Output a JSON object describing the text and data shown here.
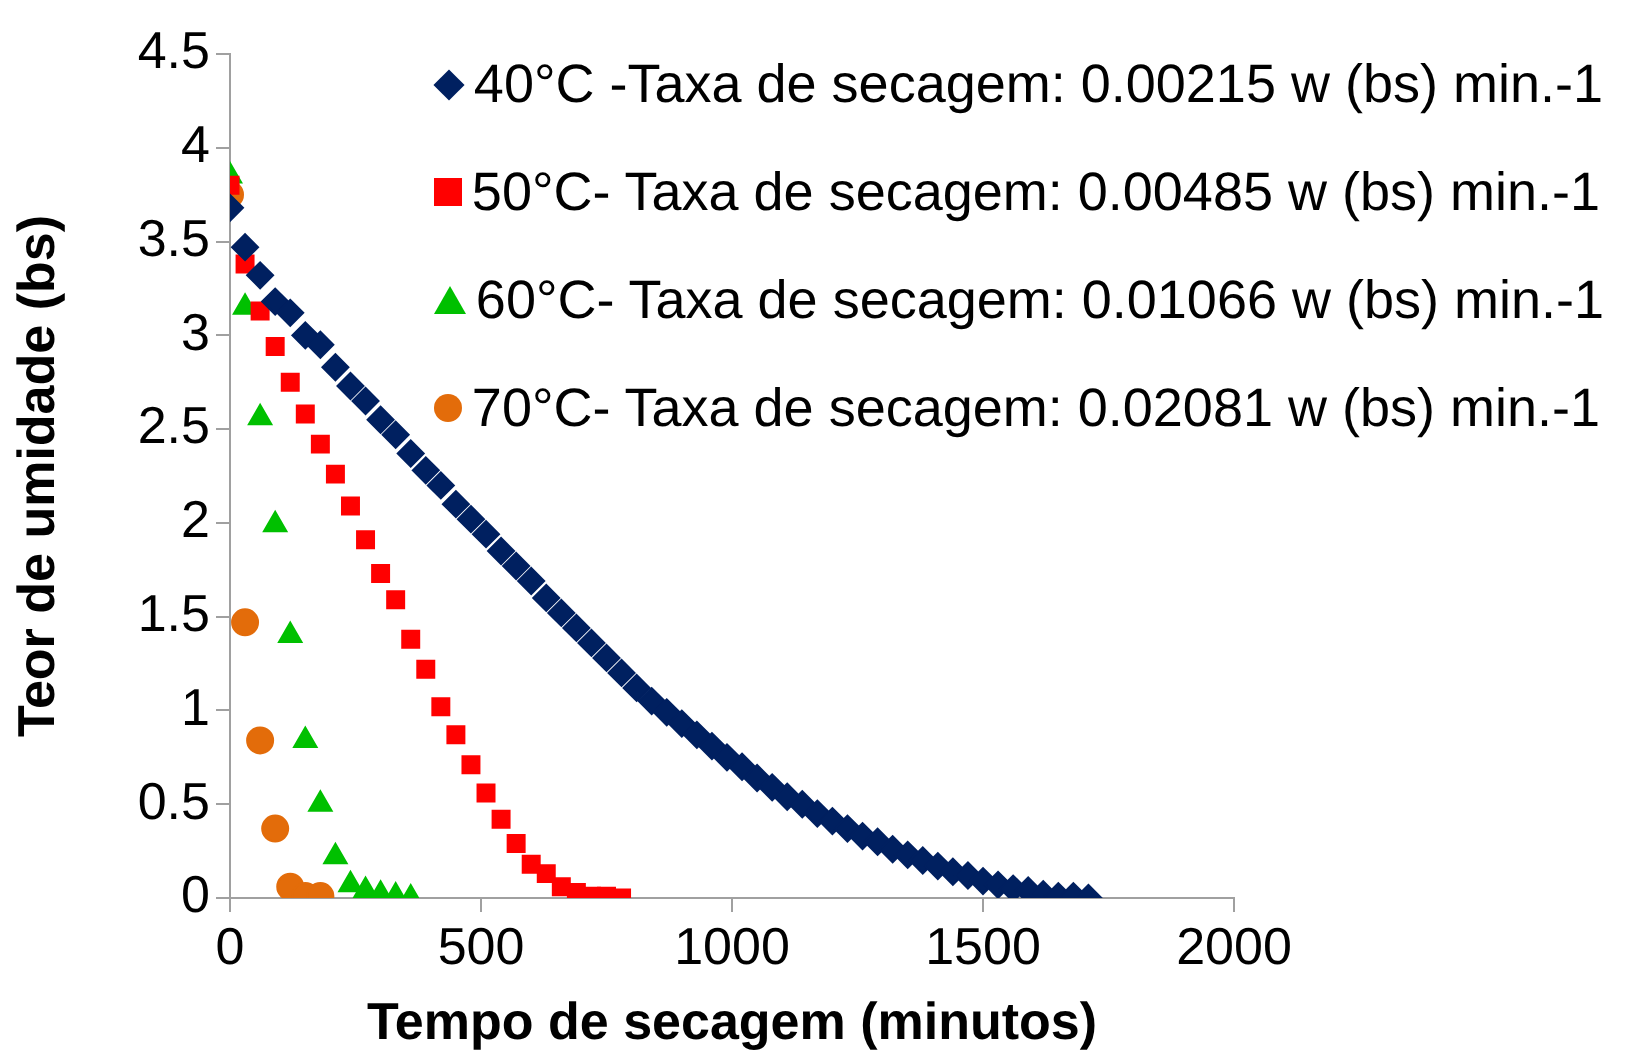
{
  "chart_data": {
    "type": "scatter",
    "xlabel": "Tempo de secagem (minutos)",
    "ylabel": "Teor de umidade (bs)",
    "xlim": [
      0,
      2000
    ],
    "xticks": [
      0,
      500,
      1000,
      1500,
      2000
    ],
    "ylim": [
      0,
      4.5
    ],
    "yticks": [
      0,
      0.5,
      1,
      1.5,
      2,
      2.5,
      3,
      3.5,
      4,
      4.5
    ],
    "grid": false,
    "legend": "top right",
    "series": [
      {
        "name": "40°C -Taxa de secagem: 0.00215 w (bs) min.-1",
        "color": "#002060",
        "marker": "diamond",
        "x": [
          0,
          30,
          60,
          90,
          120,
          150,
          180,
          210,
          240,
          270,
          300,
          330,
          360,
          390,
          420,
          450,
          480,
          510,
          540,
          570,
          600,
          630,
          660,
          690,
          720,
          750,
          780,
          810,
          840,
          870,
          900,
          930,
          960,
          990,
          1020,
          1050,
          1080,
          1110,
          1140,
          1170,
          1200,
          1230,
          1260,
          1290,
          1320,
          1350,
          1380,
          1410,
          1440,
          1470,
          1500,
          1530,
          1560,
          1590,
          1620,
          1650,
          1680,
          1710
        ],
        "values": [
          3.68,
          3.47,
          3.32,
          3.18,
          3.12,
          3.0,
          2.95,
          2.83,
          2.73,
          2.65,
          2.55,
          2.47,
          2.37,
          2.28,
          2.2,
          2.1,
          2.02,
          1.94,
          1.85,
          1.77,
          1.69,
          1.6,
          1.52,
          1.44,
          1.36,
          1.28,
          1.2,
          1.12,
          1.05,
          0.99,
          0.93,
          0.87,
          0.81,
          0.75,
          0.7,
          0.64,
          0.59,
          0.54,
          0.5,
          0.45,
          0.41,
          0.37,
          0.33,
          0.3,
          0.26,
          0.23,
          0.2,
          0.17,
          0.14,
          0.12,
          0.09,
          0.07,
          0.05,
          0.04,
          0.02,
          0.01,
          0.01,
          0
        ]
      },
      {
        "name": "50°C- Taxa de secagem: 0.00485 w (bs) min.-1",
        "color": "#ff0000",
        "marker": "square",
        "x": [
          0,
          30,
          60,
          90,
          120,
          150,
          180,
          210,
          240,
          270,
          300,
          330,
          360,
          390,
          420,
          450,
          480,
          510,
          540,
          570,
          600,
          630,
          660,
          690,
          720,
          750,
          780
        ],
        "values": [
          3.8,
          3.38,
          3.13,
          2.94,
          2.75,
          2.58,
          2.42,
          2.26,
          2.09,
          1.91,
          1.73,
          1.59,
          1.38,
          1.22,
          1.02,
          0.87,
          0.71,
          0.56,
          0.42,
          0.29,
          0.18,
          0.13,
          0.06,
          0.03,
          0.01,
          0.01,
          0
        ]
      },
      {
        "name": "60°C- Taxa de secagem: 0.01066 w (bs) min.-1",
        "color": "#00c000",
        "marker": "triangle",
        "x": [
          0,
          30,
          60,
          90,
          120,
          150,
          180,
          210,
          240,
          270,
          300,
          330,
          360
        ],
        "values": [
          3.85,
          3.15,
          2.56,
          1.99,
          1.4,
          0.84,
          0.5,
          0.22,
          0.07,
          0.04,
          0.02,
          0.01,
          0
        ]
      },
      {
        "name": "70°C- Taxa de secagem: 0.02081 w (bs) min.-1",
        "color": "#e36c0a",
        "marker": "circle",
        "x": [
          0,
          30,
          60,
          90,
          120,
          150,
          180
        ],
        "values": [
          3.75,
          1.47,
          0.84,
          0.37,
          0.06,
          0.01,
          0.01
        ]
      }
    ]
  }
}
